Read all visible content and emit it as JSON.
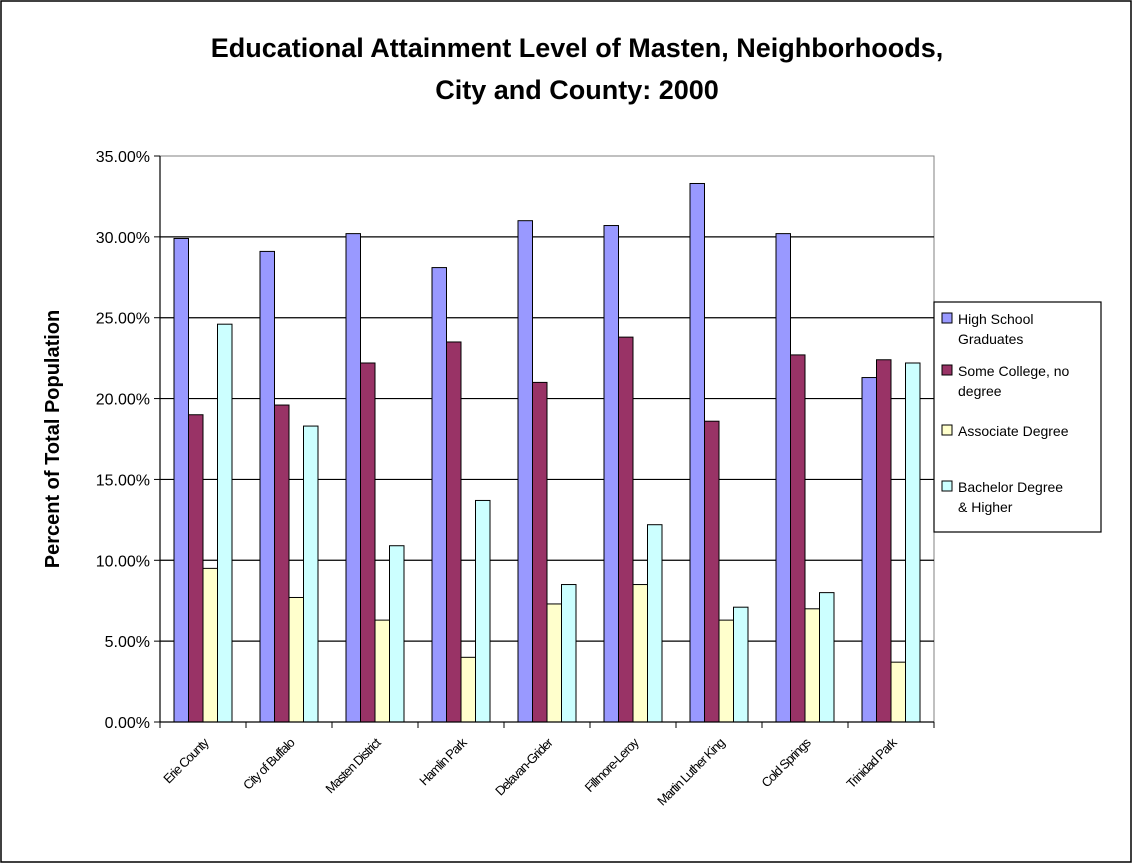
{
  "chart_data": {
    "type": "bar",
    "title": "Educational Attainment Level of Masten, Neighborhoods, City and County:  2000",
    "title_lines": [
      "Educational Attainment Level of Masten, Neighborhoods,",
      "City and County:  2000"
    ],
    "xlabel": "",
    "ylabel": "Percent of Total Population",
    "ylim": [
      0,
      35
    ],
    "yticks": [
      "0.00%",
      "5.00%",
      "10.00%",
      "15.00%",
      "20.00%",
      "25.00%",
      "30.00%",
      "35.00%"
    ],
    "grid": true,
    "legend_position": "right",
    "categories": [
      "Erie County",
      "City of Buffalo",
      "Masten District",
      "Hamlin Park",
      "Delavan-Grider",
      "Fillmore-Leroy",
      "Martin Luther King",
      "Cold Springs",
      "Trinidad Park"
    ],
    "series": [
      {
        "name": "High School Graduates",
        "legend_lines": [
          "High School",
          "Graduates"
        ],
        "color": "#9999ff",
        "values": [
          29.9,
          29.1,
          30.2,
          28.1,
          31.0,
          30.7,
          33.3,
          30.2,
          21.3
        ]
      },
      {
        "name": "Some College, no degree",
        "legend_lines": [
          "Some College, no",
          "degree"
        ],
        "color": "#993366",
        "values": [
          19.0,
          19.6,
          22.2,
          23.5,
          21.0,
          23.8,
          18.6,
          22.7,
          22.4
        ]
      },
      {
        "name": "Associate Degree",
        "legend_lines": [
          "Associate Degree"
        ],
        "color": "#ffffcc",
        "values": [
          9.5,
          7.7,
          6.3,
          4.0,
          7.3,
          8.5,
          6.3,
          7.0,
          3.7
        ]
      },
      {
        "name": "Bachelor Degree & Higher",
        "legend_lines": [
          "Bachelor Degree",
          "& Higher"
        ],
        "color": "#ccffff",
        "values": [
          24.6,
          18.3,
          10.9,
          13.7,
          8.5,
          12.2,
          7.1,
          8.0,
          22.2
        ]
      }
    ]
  }
}
